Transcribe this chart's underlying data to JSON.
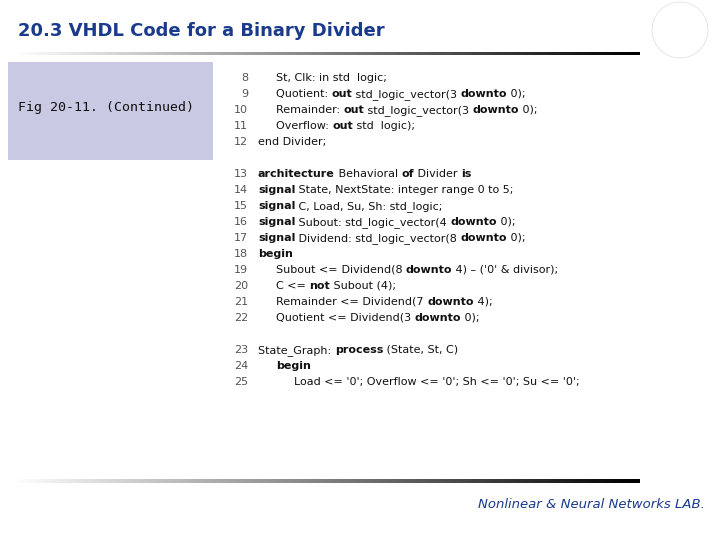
{
  "title": "20.3 VHDL Code for a Binary Divider",
  "title_color": "#1a3a8c",
  "title_fontsize": 13,
  "bg_color": "#ffffff",
  "fig_label": "Fig 20-11. (Continued)",
  "fig_label_bg": "#c0c0e0",
  "footer_text": "Nonlinear & Neural Networks LAB.",
  "footer_color": "#1a3a8c",
  "line_separator_color": "#222222",
  "code_lines": [
    {
      "num": "8",
      "indent": 1,
      "parts": [
        {
          "text": "St, Clk: in std  logic;",
          "bold": false
        }
      ]
    },
    {
      "num": "9",
      "indent": 1,
      "parts": [
        {
          "text": "Quotient: ",
          "bold": false
        },
        {
          "text": "out",
          "bold": true
        },
        {
          "text": " std_logic_vector(3 ",
          "bold": false
        },
        {
          "text": "downto",
          "bold": true
        },
        {
          "text": " 0);",
          "bold": false
        }
      ]
    },
    {
      "num": "10",
      "indent": 1,
      "parts": [
        {
          "text": "Remainder: ",
          "bold": false
        },
        {
          "text": "out",
          "bold": true
        },
        {
          "text": " std_logic_vector(3 ",
          "bold": false
        },
        {
          "text": "downto",
          "bold": true
        },
        {
          "text": " 0);",
          "bold": false
        }
      ]
    },
    {
      "num": "11",
      "indent": 1,
      "parts": [
        {
          "text": "Overflow: ",
          "bold": false
        },
        {
          "text": "out",
          "bold": true
        },
        {
          "text": " std  logic);",
          "bold": false
        }
      ]
    },
    {
      "num": "12",
      "indent": 0,
      "parts": [
        {
          "text": "end Divider;",
          "bold": false
        }
      ]
    },
    {
      "num": "",
      "indent": 0,
      "parts": []
    },
    {
      "num": "13",
      "indent": 0,
      "parts": [
        {
          "text": "architecture",
          "bold": true
        },
        {
          "text": " Behavioral ",
          "bold": false
        },
        {
          "text": "of",
          "bold": true
        },
        {
          "text": " Divider ",
          "bold": false
        },
        {
          "text": "is",
          "bold": true
        }
      ]
    },
    {
      "num": "14",
      "indent": 0,
      "parts": [
        {
          "text": "signal",
          "bold": true
        },
        {
          "text": " State, NextState: integer range 0 to 5;",
          "bold": false
        }
      ]
    },
    {
      "num": "15",
      "indent": 0,
      "parts": [
        {
          "text": "signal",
          "bold": true
        },
        {
          "text": " C, Load, Su, Sh: std_logic;",
          "bold": false
        }
      ]
    },
    {
      "num": "16",
      "indent": 0,
      "parts": [
        {
          "text": "signal",
          "bold": true
        },
        {
          "text": " Subout: std_logic_vector(4 ",
          "bold": false
        },
        {
          "text": "downto",
          "bold": true
        },
        {
          "text": " 0);",
          "bold": false
        }
      ]
    },
    {
      "num": "17",
      "indent": 0,
      "parts": [
        {
          "text": "signal",
          "bold": true
        },
        {
          "text": " Dividend: std_logic_vector(8 ",
          "bold": false
        },
        {
          "text": "downto",
          "bold": true
        },
        {
          "text": " 0);",
          "bold": false
        }
      ]
    },
    {
      "num": "18",
      "indent": 0,
      "parts": [
        {
          "text": "begin",
          "bold": true
        }
      ]
    },
    {
      "num": "19",
      "indent": 1,
      "parts": [
        {
          "text": "Subout <=",
          "bold": false
        },
        {
          "text": " Dividend(8 ",
          "bold": false
        },
        {
          "text": "downto",
          "bold": true
        },
        {
          "text": " 4) – ('0' & divisor);",
          "bold": false
        }
      ]
    },
    {
      "num": "20",
      "indent": 1,
      "parts": [
        {
          "text": "C <= ",
          "bold": false
        },
        {
          "text": "not",
          "bold": true
        },
        {
          "text": " Subout (4);",
          "bold": false
        }
      ]
    },
    {
      "num": "21",
      "indent": 1,
      "parts": [
        {
          "text": "Remainder <= Dividend(7 ",
          "bold": false
        },
        {
          "text": "downto",
          "bold": true
        },
        {
          "text": " 4);",
          "bold": false
        }
      ]
    },
    {
      "num": "22",
      "indent": 1,
      "parts": [
        {
          "text": "Quotient <= Dividend(3 ",
          "bold": false
        },
        {
          "text": "downto",
          "bold": true
        },
        {
          "text": " 0);",
          "bold": false
        }
      ]
    },
    {
      "num": "",
      "indent": 0,
      "parts": []
    },
    {
      "num": "23",
      "indent": 0,
      "parts": [
        {
          "text": "State_Graph: ",
          "bold": false
        },
        {
          "text": "process",
          "bold": true
        },
        {
          "text": " (State, St, C)",
          "bold": false
        }
      ]
    },
    {
      "num": "24",
      "indent": 1,
      "parts": [
        {
          "text": "begin",
          "bold": true
        }
      ]
    },
    {
      "num": "25",
      "indent": 2,
      "parts": [
        {
          "text": "Load <= '0'; Overflow <= '0'; Sh <= '0'; Su <= '0';",
          "bold": false
        }
      ]
    }
  ]
}
